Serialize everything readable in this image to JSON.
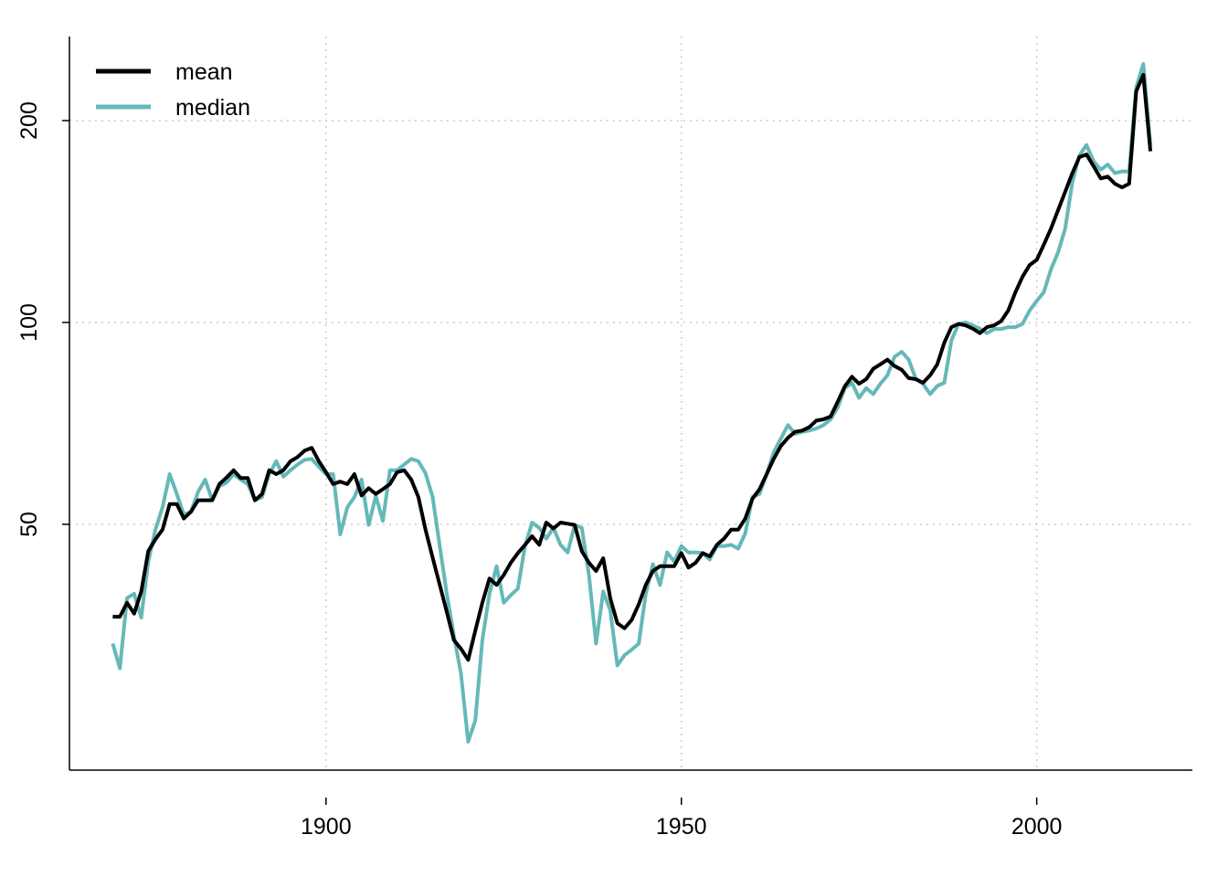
{
  "chart_data": {
    "type": "line",
    "log_y": true,
    "grid": true,
    "grid_style": "dotted",
    "legend_position": "top-left",
    "x": [
      1870,
      1871,
      1872,
      1873,
      1874,
      1875,
      1876,
      1877,
      1878,
      1879,
      1880,
      1881,
      1882,
      1883,
      1884,
      1885,
      1886,
      1887,
      1888,
      1889,
      1890,
      1891,
      1892,
      1893,
      1894,
      1895,
      1896,
      1897,
      1898,
      1899,
      1900,
      1901,
      1902,
      1903,
      1904,
      1905,
      1906,
      1907,
      1908,
      1909,
      1910,
      1911,
      1912,
      1913,
      1914,
      1915,
      1916,
      1917,
      1918,
      1919,
      1920,
      1921,
      1922,
      1923,
      1924,
      1925,
      1926,
      1927,
      1928,
      1929,
      1930,
      1931,
      1932,
      1933,
      1934,
      1935,
      1936,
      1937,
      1938,
      1939,
      1940,
      1941,
      1942,
      1943,
      1944,
      1945,
      1946,
      1947,
      1948,
      1949,
      1950,
      1951,
      1952,
      1953,
      1954,
      1955,
      1956,
      1957,
      1958,
      1959,
      1960,
      1961,
      1962,
      1963,
      1964,
      1965,
      1966,
      1967,
      1968,
      1969,
      1970,
      1971,
      1972,
      1973,
      1974,
      1975,
      1976,
      1977,
      1978,
      1979,
      1980,
      1981,
      1982,
      1983,
      1984,
      1985,
      1986,
      1987,
      1988,
      1989,
      1990,
      1991,
      1992,
      1993,
      1994,
      1995,
      1996,
      1997,
      1998,
      1999,
      2000,
      2001,
      2002,
      2003,
      2004,
      2005,
      2006,
      2007,
      2008,
      2009,
      2010,
      2011,
      2012,
      2013,
      2014,
      2015,
      2016
    ],
    "series": [
      {
        "name": "mean",
        "color": "#000000",
        "values": [
          36.4,
          36.4,
          38.2,
          36.8,
          39.7,
          45.6,
          47.5,
          49.1,
          53.6,
          53.6,
          51.0,
          52.2,
          54.3,
          54.3,
          54.3,
          57.4,
          58.7,
          60.2,
          58.6,
          58.6,
          54.3,
          55.5,
          60.2,
          59.4,
          60.2,
          62.1,
          63.0,
          64.4,
          65.0,
          62.1,
          59.8,
          57.4,
          57.9,
          57.4,
          59.4,
          55.2,
          56.6,
          55.5,
          56.4,
          57.4,
          59.8,
          60.2,
          58.3,
          54.9,
          49.1,
          44.6,
          40.6,
          37.0,
          33.6,
          32.6,
          31.4,
          34.7,
          38.2,
          41.5,
          40.6,
          42.0,
          43.8,
          45.3,
          46.6,
          48.0,
          46.6,
          50.3,
          49.3,
          50.3,
          50.1,
          49.9,
          45.6,
          43.8,
          42.6,
          44.5,
          38.8,
          35.6,
          35.0,
          36.0,
          38.0,
          40.6,
          42.6,
          43.3,
          43.3,
          43.3,
          45.3,
          43.1,
          43.8,
          45.3,
          44.8,
          46.6,
          47.6,
          49.1,
          49.1,
          51.0,
          54.6,
          56.4,
          59.4,
          62.6,
          65.4,
          67.3,
          68.7,
          69.0,
          69.8,
          71.4,
          71.7,
          72.4,
          76.2,
          80.3,
          83.0,
          81.0,
          82.3,
          85.3,
          86.6,
          88.0,
          86.1,
          85.0,
          82.6,
          82.3,
          81.3,
          83.4,
          86.6,
          93.3,
          98.4,
          99.5,
          99.0,
          97.9,
          96.4,
          98.4,
          99.0,
          100.5,
          104.2,
          110.9,
          117.0,
          121.8,
          124.0,
          130.6,
          138.0,
          147.0,
          156.6,
          166.8,
          176.4,
          178.0,
          171.0,
          164.0,
          165,
          161,
          159,
          161,
          221,
          234,
          180
        ]
      },
      {
        "name": "median",
        "color": "#66b8b8",
        "values": [
          33.2,
          30.5,
          38.8,
          39.4,
          36.3,
          44.0,
          49.1,
          53.0,
          59.4,
          55.5,
          51.7,
          52.2,
          55.9,
          58.3,
          54.3,
          57.0,
          57.7,
          59.4,
          58.3,
          57.4,
          54.3,
          54.9,
          59.4,
          62.1,
          58.9,
          60.2,
          61.4,
          62.4,
          62.6,
          60.9,
          59.4,
          59.4,
          48.3,
          53.0,
          54.9,
          58.3,
          49.9,
          55.1,
          50.6,
          60.2,
          60.2,
          61.4,
          62.6,
          62.1,
          59.6,
          54.9,
          46.4,
          39.4,
          34.1,
          29.9,
          23.7,
          25.5,
          33.6,
          39.4,
          43.3,
          38.2,
          39.2,
          40.1,
          46.4,
          50.3,
          49.4,
          47.6,
          49.4,
          46.6,
          45.4,
          49.9,
          49.4,
          42.0,
          33.2,
          39.7,
          37.2,
          30.8,
          31.9,
          32.5,
          33.2,
          39.4,
          43.6,
          40.6,
          45.4,
          44.0,
          46.4,
          45.4,
          45.4,
          45.3,
          44.3,
          46.4,
          46.4,
          46.6,
          46.0,
          48.5,
          54.9,
          55.5,
          59.4,
          64.0,
          67.1,
          70.3,
          68.2,
          68.7,
          69.0,
          69.5,
          70.3,
          71.7,
          74.7,
          79.8,
          81.3,
          77.2,
          79.8,
          78.2,
          81.0,
          83.4,
          88.9,
          90.4,
          88.0,
          82.3,
          81.0,
          78.2,
          80.4,
          81.3,
          94.0,
          99.5,
          100,
          99.0,
          97.9,
          96.4,
          97.8,
          97.8,
          98.4,
          98.4,
          99.5,
          104.2,
          107.7,
          110.9,
          120.0,
          127.2,
          138.0,
          161.5,
          177.4,
          183.9,
          174,
          169,
          172,
          167,
          168,
          168,
          224,
          243,
          183.9
        ]
      }
    ],
    "xlim": [
      1863.9,
      2021.9
    ],
    "xticks": [
      1900,
      1950,
      2000
    ],
    "ylim": [
      21.5,
      266.9
    ],
    "yticks": [
      50,
      100,
      200
    ]
  }
}
